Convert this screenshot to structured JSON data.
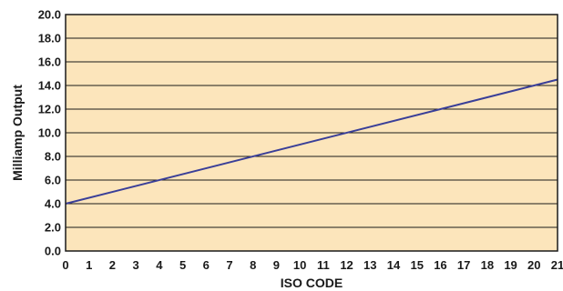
{
  "chart_data": {
    "type": "line",
    "title": "",
    "xlabel": "ISO CODE",
    "ylabel": "Milliamp Output",
    "xlim": [
      0,
      21
    ],
    "ylim": [
      0,
      20
    ],
    "x_ticks": [
      "0",
      "1",
      "2",
      "3",
      "4",
      "5",
      "6",
      "7",
      "8",
      "9",
      "10",
      "11",
      "12",
      "13",
      "14",
      "15",
      "16",
      "17",
      "18",
      "19",
      "20",
      "21"
    ],
    "y_ticks": [
      "0.0",
      "2.0",
      "4.0",
      "6.0",
      "8.0",
      "10.0",
      "12.0",
      "14.0",
      "16.0",
      "18.0",
      "20.0"
    ],
    "grid": "horizontal",
    "legend": "none",
    "series": [
      {
        "x": [
          0,
          21
        ],
        "y": [
          4.0,
          14.5
        ]
      }
    ],
    "colors": {
      "plot_background": "#fce5bb",
      "line": "#3a3f98",
      "grid": "#1a1a1a",
      "frame": "#1a1a1a"
    }
  }
}
